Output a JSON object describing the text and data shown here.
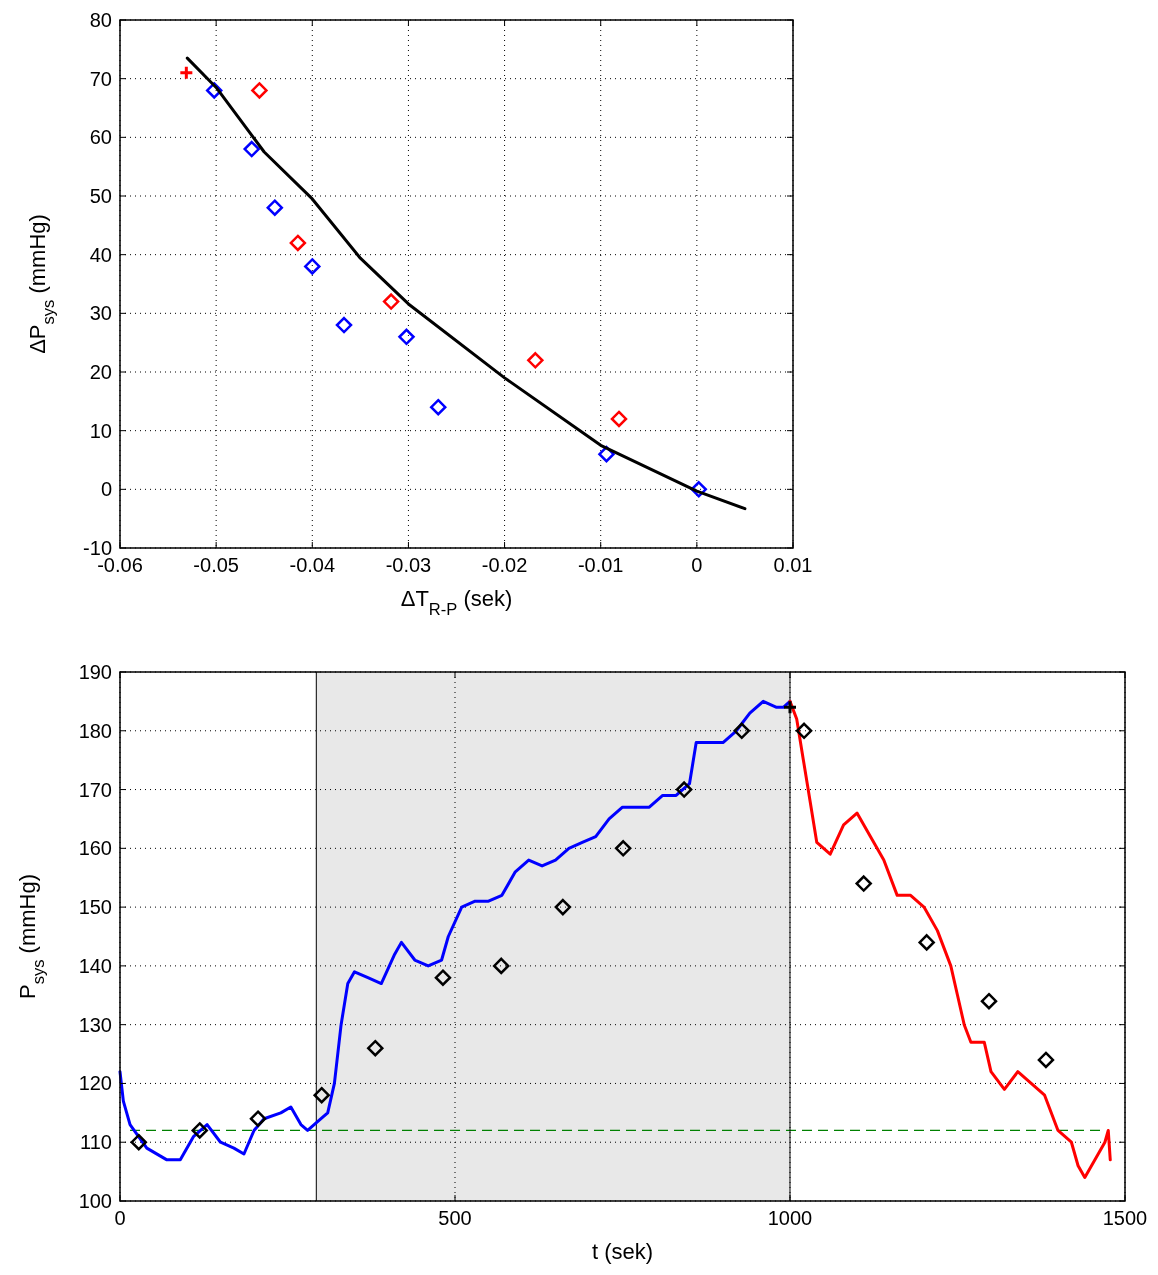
{
  "chart_data": [
    {
      "type": "scatter",
      "xlabel": "ΔT$_{R-P}$ (sek)",
      "ylabel": "ΔP$_{sys}$ (mmHg)",
      "xlim": [
        -0.06,
        0.01
      ],
      "xticks": [
        -0.06,
        -0.05,
        -0.04,
        -0.03,
        -0.02,
        -0.01,
        0,
        0.01
      ],
      "ylim": [
        -10,
        80
      ],
      "yticks": [
        -10,
        0,
        10,
        20,
        30,
        40,
        50,
        60,
        70,
        80
      ],
      "grid": true,
      "marker": "diamond",
      "series": [
        {
          "color": "#0000ff",
          "x": [
            -0.0502,
            -0.0463,
            -0.0439,
            -0.04,
            -0.0367,
            -0.0302,
            -0.0269,
            -0.0094,
            0.0002
          ],
          "values": [
            68,
            58,
            48,
            38,
            28,
            26,
            14,
            6,
            0
          ]
        },
        {
          "color": "#ff0000",
          "x": [
            -0.0455,
            -0.0415,
            -0.0318,
            -0.0168,
            -0.0081
          ],
          "values": [
            68,
            42,
            32,
            22,
            12
          ]
        },
        {
          "color": "#ff0000",
          "marker": "cross",
          "x": [
            -0.0531
          ],
          "values": [
            71
          ]
        },
        {
          "type": "line",
          "color": "#000000",
          "marker": "none",
          "line_style": "solid",
          "x": [
            -0.053,
            -0.05,
            -0.045,
            -0.04,
            -0.035,
            -0.03,
            -0.02,
            -0.01,
            0,
            0.005
          ],
          "values": [
            73.5,
            68.5,
            57.5,
            49.5,
            39.4,
            31.6,
            19,
            7.5,
            -0.3,
            -3.3
          ]
        }
      ]
    },
    {
      "type": "line",
      "xlabel": "t (sek)",
      "ylabel": "P$_{sys}$ (mmHg)",
      "xlim": [
        0,
        1500
      ],
      "xticks": [
        0,
        500,
        1000,
        1500
      ],
      "ylim": [
        100,
        190
      ],
      "yticks": [
        100,
        110,
        120,
        130,
        140,
        150,
        160,
        170,
        180,
        190
      ],
      "grid": true,
      "marker": "none",
      "bands": [
        {
          "axis": "x",
          "from": 293,
          "to": 1000,
          "color": "#e8e8e8"
        }
      ],
      "ref_lines": [
        {
          "axis": "y",
          "value": 112,
          "color": "#008000",
          "line_style": "dashed"
        },
        {
          "axis": "x",
          "value": 293,
          "color": "#000000",
          "line_style": "solid"
        },
        {
          "axis": "x",
          "value": 1000,
          "color": "#000000",
          "line_style": "solid"
        }
      ],
      "series": [
        {
          "color": "#0000ff",
          "x": [
            0,
            5,
            15,
            40,
            70,
            90,
            110,
            130,
            150,
            170,
            185,
            200,
            215,
            240,
            255,
            270,
            280,
            300,
            310,
            320,
            330,
            340,
            350,
            370,
            390,
            410,
            420,
            440,
            460,
            480,
            490,
            510,
            530,
            550,
            570,
            590,
            610,
            630,
            650,
            670,
            690,
            710,
            730,
            750,
            770,
            790,
            810,
            830,
            850,
            860,
            880,
            900,
            920,
            940,
            960,
            980,
            990,
            1000
          ],
          "values": [
            122,
            117,
            113,
            109,
            107,
            107,
            111,
            113,
            110,
            109,
            108,
            112,
            114,
            115,
            116,
            113,
            112,
            114,
            115,
            120,
            130,
            137,
            139,
            138,
            137,
            142,
            144,
            141,
            140,
            141,
            145,
            150,
            151,
            151,
            152,
            156,
            158,
            157,
            158,
            160,
            161,
            162,
            165,
            167,
            167,
            167,
            169,
            169,
            171,
            178,
            178,
            178,
            180,
            183,
            185,
            184,
            184,
            185
          ]
        },
        {
          "color": "#ff0000",
          "x": [
            1000,
            1010,
            1020,
            1030,
            1040,
            1060,
            1080,
            1100,
            1120,
            1140,
            1160,
            1180,
            1200,
            1220,
            1240,
            1250,
            1260,
            1270,
            1290,
            1300,
            1320,
            1340,
            1360,
            1380,
            1400,
            1420,
            1430,
            1440,
            1450,
            1460,
            1470,
            1475,
            1478
          ],
          "values": [
            185,
            182,
            175,
            168,
            161,
            159,
            164,
            166,
            162,
            158,
            152,
            152,
            150,
            146,
            140,
            135,
            130,
            127,
            127,
            122,
            119,
            122,
            120,
            118,
            112,
            110,
            106,
            104,
            106,
            108,
            110,
            112,
            107
          ]
        },
        {
          "type": "scatter",
          "color": "#000000",
          "marker": "diamond",
          "x": [
            28,
            119,
            206,
            301,
            381,
            482,
            569,
            661,
            751,
            842,
            928,
            1021,
            1110,
            1204,
            1297,
            1382
          ],
          "values": [
            110,
            112,
            114,
            118,
            126,
            138,
            140,
            150,
            160,
            170,
            180,
            180,
            154,
            144,
            134,
            124
          ]
        },
        {
          "type": "scatter",
          "color": "#000000",
          "marker": "cross",
          "x": [
            1000
          ],
          "values": [
            184
          ]
        }
      ]
    }
  ]
}
